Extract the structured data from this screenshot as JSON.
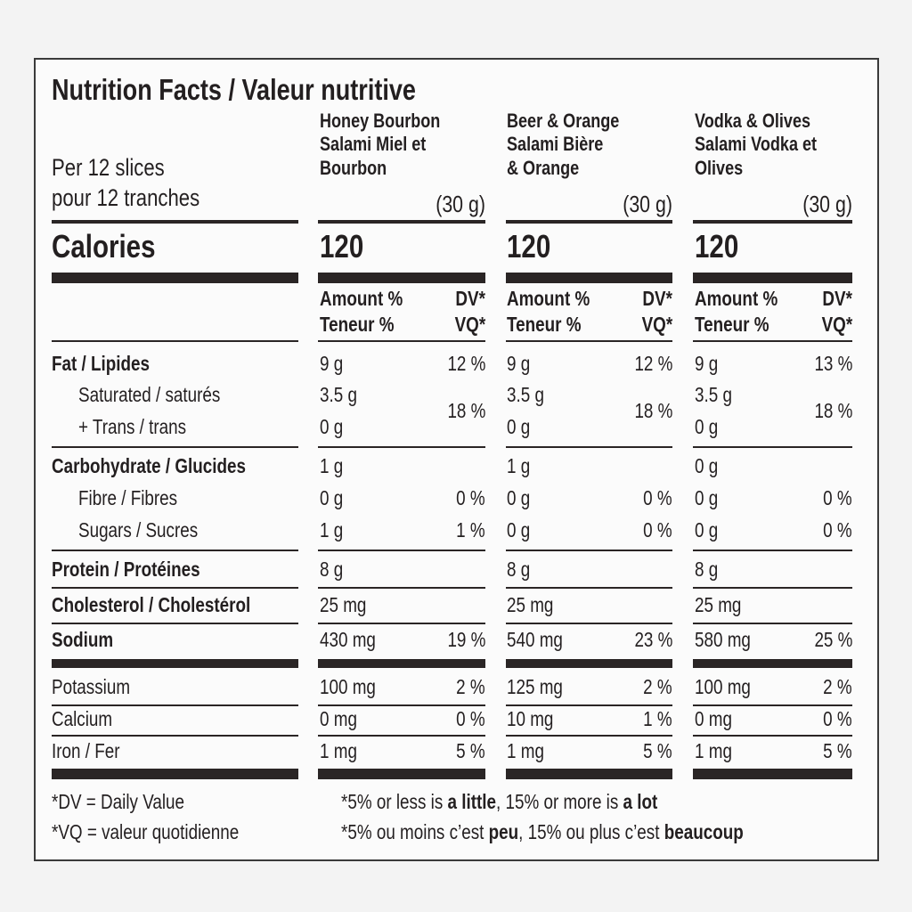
{
  "title": "Nutrition Facts / Valeur nutritive",
  "serving": [
    "Per 12 slices",
    "pour 12 tranches"
  ],
  "calories_label": "Calories",
  "amount_header": [
    [
      "Amount %",
      "DV*"
    ],
    [
      "Teneur %",
      "VQ*"
    ]
  ],
  "products": [
    {
      "name": [
        "Honey Bourbon",
        "Salami Miel et",
        "Bourbon"
      ],
      "serving_size": "(30 g)",
      "calories": "120"
    },
    {
      "name": [
        "Beer & Orange",
        "Salami Bière",
        "& Orange"
      ],
      "serving_size": "(30 g)",
      "calories": "120"
    },
    {
      "name": [
        "Vodka & Olives",
        "Salami Vodka et",
        "Olives"
      ],
      "serving_size": "(30 g)",
      "calories": "120"
    }
  ],
  "rows": [
    {
      "label": "Fat / Lipides",
      "bold": true,
      "amounts": [
        "9 g",
        "9 g",
        "9 g"
      ],
      "dv": [
        "12 %",
        "12 %",
        "13 %"
      ]
    },
    {
      "labels": [
        "Saturated / saturés",
        "+ Trans / trans"
      ],
      "indent": true,
      "amounts": [
        [
          "3.5 g",
          "0 g"
        ],
        [
          "3.5 g",
          "0 g"
        ],
        [
          "3.5 g",
          "0 g"
        ]
      ],
      "dv": [
        "18 %",
        "18 %",
        "18 %"
      ]
    },
    {
      "label": "Carbohydrate / Glucides",
      "bold": true,
      "amounts": [
        "1 g",
        "1 g",
        "0 g"
      ]
    },
    {
      "label": "Fibre / Fibres",
      "indent": true,
      "amounts": [
        "0 g",
        "0 g",
        "0 g"
      ],
      "dv": [
        "0 %",
        "0 %",
        "0 %"
      ]
    },
    {
      "label": "Sugars / Sucres",
      "indent": true,
      "amounts": [
        "1 g",
        "0 g",
        "0 g"
      ],
      "dv": [
        "1 %",
        "0 %",
        "0 %"
      ]
    },
    {
      "label": "Protein / Protéines",
      "bold": true,
      "amounts": [
        "8 g",
        "8 g",
        "8 g"
      ]
    },
    {
      "label": "Cholesterol / Cholestérol",
      "bold": true,
      "amounts": [
        "25 mg",
        "25 mg",
        "25 mg"
      ]
    },
    {
      "label": "Sodium",
      "bold": true,
      "amounts": [
        "430 mg",
        "540 mg",
        "580 mg"
      ],
      "dv": [
        "19 %",
        "23 %",
        "25 %"
      ]
    },
    {
      "label": "Potassium",
      "amounts": [
        "100 mg",
        "125 mg",
        "100 mg"
      ],
      "dv": [
        "2 %",
        "2 %",
        "2 %"
      ]
    },
    {
      "label": "Calcium",
      "amounts": [
        "0 mg",
        "10 mg",
        "0 mg"
      ],
      "dv": [
        "0 %",
        "1 %",
        "0 %"
      ]
    },
    {
      "label": "Iron / Fer",
      "amounts": [
        "1 mg",
        "1 mg",
        "1 mg"
      ],
      "dv": [
        "5 %",
        "5 %",
        "5 %"
      ]
    }
  ],
  "footnotes_left": [
    "*DV = Daily Value",
    "*VQ = valeur quotidienne"
  ],
  "footnotes_right": [
    [
      {
        "text": "*5% or less is "
      },
      {
        "text": "a little",
        "bold": true
      },
      {
        "text": ", 15% or more is "
      },
      {
        "text": "a lot",
        "bold": true
      }
    ],
    [
      {
        "text": "*5% ou moins c’est "
      },
      {
        "text": "peu",
        "bold": true
      },
      {
        "text": ", 15% ou plus c’est "
      },
      {
        "text": "beaucoup",
        "bold": true
      }
    ]
  ]
}
